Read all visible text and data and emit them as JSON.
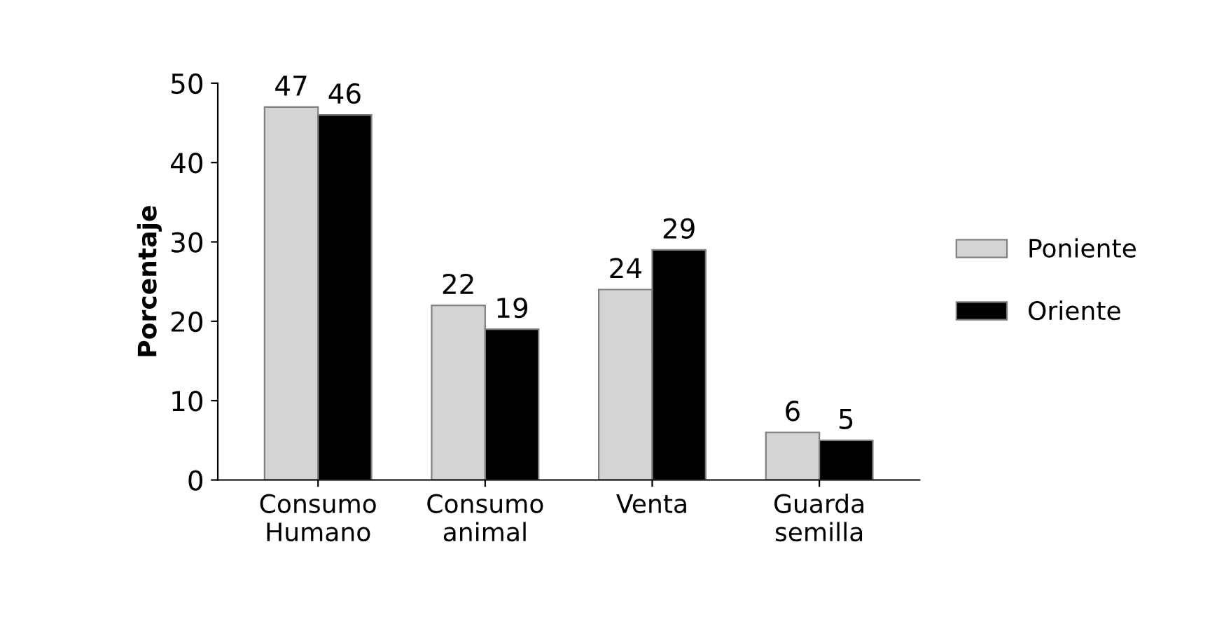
{
  "chart_data": {
    "type": "bar",
    "ylabel": "Porcentaje",
    "categories": [
      "Consumo\nHumano",
      "Consumo\nanimal",
      "Venta",
      "Guarda\nsemilla"
    ],
    "series": [
      {
        "name": "Poniente",
        "color": "#d4d4d4",
        "values": [
          47,
          22,
          24,
          6
        ]
      },
      {
        "name": "Oriente",
        "color": "#000000",
        "values": [
          46,
          19,
          29,
          5
        ]
      }
    ],
    "ylim": [
      0,
      50
    ],
    "yticks": [
      0,
      10,
      20,
      30,
      40,
      50
    ],
    "grid": false,
    "legend": "right",
    "data_labels": true
  }
}
